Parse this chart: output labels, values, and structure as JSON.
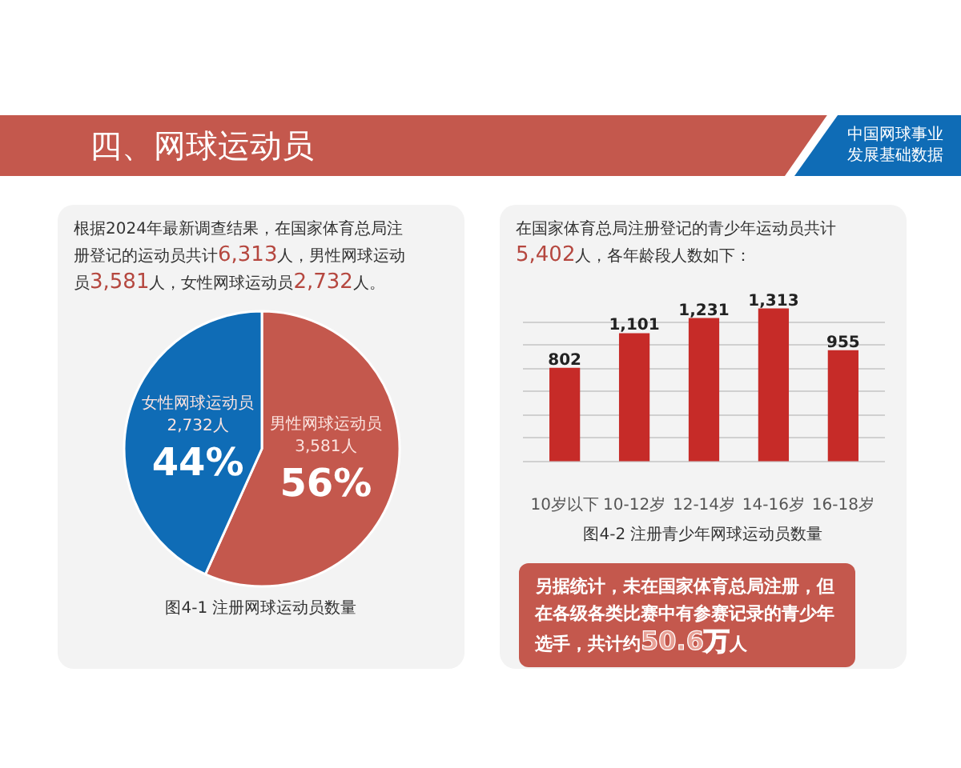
{
  "chart_data": [
    {
      "type": "other",
      "title": "四、网球运动员",
      "annotations": [
        "中国网球事业发展基础数据"
      ]
    },
    {
      "type": "pie",
      "subtitle": "根据2024年最新调查结果，在国家体育总局注册登记的运动员共计6,313人，男性网球运动员3,581人，女性网球运动员2,732人。",
      "title": "图4-1 注册网球运动员数量",
      "categories": [
        "男性网球运动员",
        "女性网球运动员"
      ],
      "values": [
        3581,
        2732
      ],
      "value_labels": [
        "3,581人\n56%",
        "2,732人\n44%"
      ],
      "colors": [
        "#c4584d",
        "#0f6cb6"
      ]
    },
    {
      "type": "bar",
      "subtitle": "在国家体育总局注册登记的青少年运动员共计5,402人，各年龄段人数如下：",
      "title": "图4-2 注册青少年网球运动员数量",
      "categories": [
        "10岁以下",
        "10-12岁",
        "12-14岁",
        "14-16岁",
        "16-18岁"
      ],
      "values": [
        802,
        1101,
        1231,
        1313,
        955
      ],
      "value_labels": [
        "802",
        "1,101",
        "1,231",
        "1,313",
        "955"
      ],
      "color": "#c62b28",
      "yticks": [
        {
          "value": 0,
          "label": null
        },
        {
          "value": 200,
          "label": null
        },
        {
          "value": 400,
          "label": null
        },
        {
          "value": 600,
          "label": null
        },
        {
          "value": 800,
          "label": null
        },
        {
          "value": 1000,
          "label": null
        },
        {
          "value": 1200,
          "label": null
        }
      ],
      "grid": "y",
      "tick_labels": "x",
      "annotations": [
        "另据统计，未在国家体育总局注册，但在各级各类比赛中有参赛记录的青少年选手，共计约50.6万人"
      ]
    }
  ]
}
